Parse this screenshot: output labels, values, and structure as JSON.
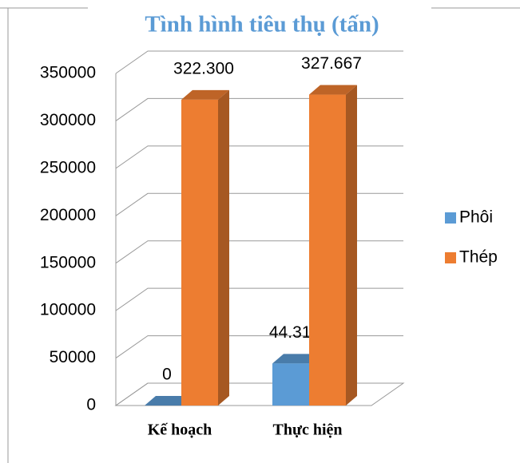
{
  "chart_data": {
    "type": "bar3d",
    "title": "Tình hình tiêu thụ (tấn)",
    "categories": [
      "Kế hoạch",
      "Thực hiện"
    ],
    "series": [
      {
        "name": "Phôi",
        "color": "#5b9bd5",
        "values": [
          0,
          44318
        ],
        "value_labels": [
          "0",
          "44.318"
        ]
      },
      {
        "name": "Thép",
        "color": "#ed7d31",
        "values": [
          322300,
          327667
        ],
        "value_labels": [
          "322.300",
          "327.667"
        ]
      }
    ],
    "ylim": [
      0,
      350000
    ],
    "yticks": [
      0,
      50000,
      100000,
      150000,
      200000,
      250000,
      300000,
      350000
    ],
    "grid": true,
    "legend": "right"
  }
}
